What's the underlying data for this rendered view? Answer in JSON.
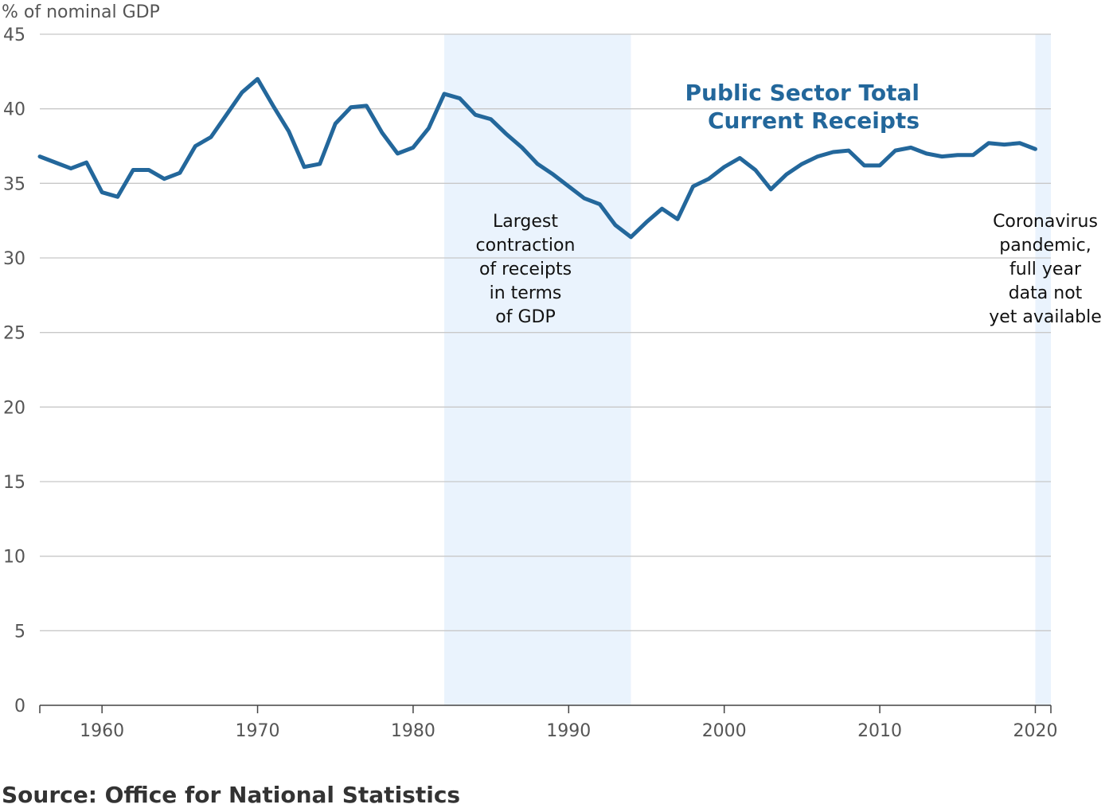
{
  "chart_data": {
    "type": "line",
    "ylabel": "% of nominal GDP",
    "ylim": [
      0,
      45
    ],
    "yticks": [
      0,
      5,
      10,
      15,
      20,
      25,
      30,
      35,
      40,
      45
    ],
    "xlim": [
      1956,
      2021
    ],
    "xticks": [
      1960,
      1970,
      1980,
      1990,
      2000,
      2010,
      2020
    ],
    "grid": true,
    "series": [
      {
        "name": "Public Sector Total Current Receipts",
        "color": "#23679b",
        "x": [
          1956,
          1957,
          1958,
          1959,
          1960,
          1961,
          1962,
          1963,
          1964,
          1965,
          1966,
          1967,
          1968,
          1969,
          1970,
          1971,
          1972,
          1973,
          1974,
          1975,
          1976,
          1977,
          1978,
          1979,
          1980,
          1981,
          1982,
          1983,
          1984,
          1985,
          1986,
          1987,
          1988,
          1989,
          1990,
          1991,
          1992,
          1993,
          1994,
          1995,
          1996,
          1997,
          1998,
          1999,
          2000,
          2001,
          2002,
          2003,
          2004,
          2005,
          2006,
          2007,
          2008,
          2009,
          2010,
          2011,
          2012,
          2013,
          2014,
          2015,
          2016,
          2017,
          2018,
          2019,
          2020
        ],
        "values": [
          36.8,
          36.4,
          36.0,
          36.4,
          34.4,
          34.1,
          35.9,
          35.9,
          35.3,
          35.7,
          37.5,
          38.1,
          39.6,
          41.1,
          42.0,
          40.2,
          38.5,
          36.1,
          36.3,
          39.0,
          40.1,
          40.2,
          38.4,
          37.0,
          37.4,
          38.7,
          41.0,
          40.7,
          39.6,
          39.3,
          38.3,
          37.4,
          36.3,
          35.6,
          34.8,
          34.0,
          33.6,
          32.2,
          31.4,
          32.4,
          33.3,
          32.6,
          34.8,
          35.3,
          36.1,
          36.7,
          35.9,
          34.6,
          35.6,
          36.3,
          36.8,
          37.1,
          37.2,
          36.2,
          36.2,
          37.2,
          37.4,
          37.0,
          36.8,
          36.9,
          36.9,
          37.7,
          37.6,
          37.7,
          37.3
        ]
      }
    ],
    "shaded_regions": [
      {
        "from": 1982,
        "to": 1994,
        "color": "#eaf3fd"
      },
      {
        "from": 2020,
        "to": 2021,
        "color": "#eaf3fd"
      }
    ],
    "annotations": {
      "contraction": [
        "Largest",
        "contraction",
        "of receipts",
        "in terms",
        "of GDP"
      ],
      "pandemic": [
        "Coronavirus",
        "pandemic,",
        "full year",
        "data not",
        "yet available"
      ]
    },
    "series_label": [
      "Public Sector Total",
      "Current Receipts"
    ]
  },
  "source": "Source: Office for National Statistics"
}
